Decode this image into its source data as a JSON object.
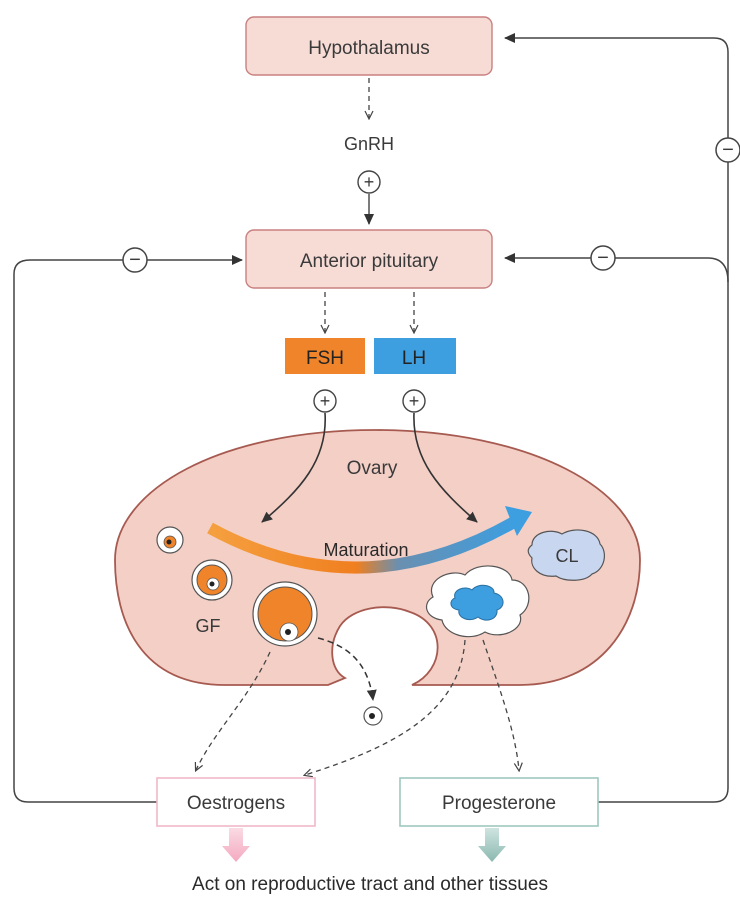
{
  "nodes": {
    "hypothalamus": "Hypothalamus",
    "gnrh": "GnRH",
    "anterior_pituitary": "Anterior pituitary",
    "fsh": "FSH",
    "lh": "LH",
    "ovary": "Ovary",
    "maturation": "Maturation",
    "gf": "GF",
    "cl": "CL",
    "oestrogens": "Oestrogens",
    "progesterone": "Progesterone",
    "footer": "Act on reproductive tract and other tissues"
  },
  "signs": {
    "stimulate": "+",
    "inhibit": "−"
  },
  "colors": {
    "box_fill": "#f7dcd6",
    "box_stroke": "#c98080",
    "ovary_fill": "#f3cfc6",
    "fsh": "#f0842a",
    "lh": "#3d9ee0",
    "cl_fill": "#c8d6f0",
    "oestrogens_border": "#f0b8c8",
    "progesterone_border": "#9ec8c0"
  }
}
